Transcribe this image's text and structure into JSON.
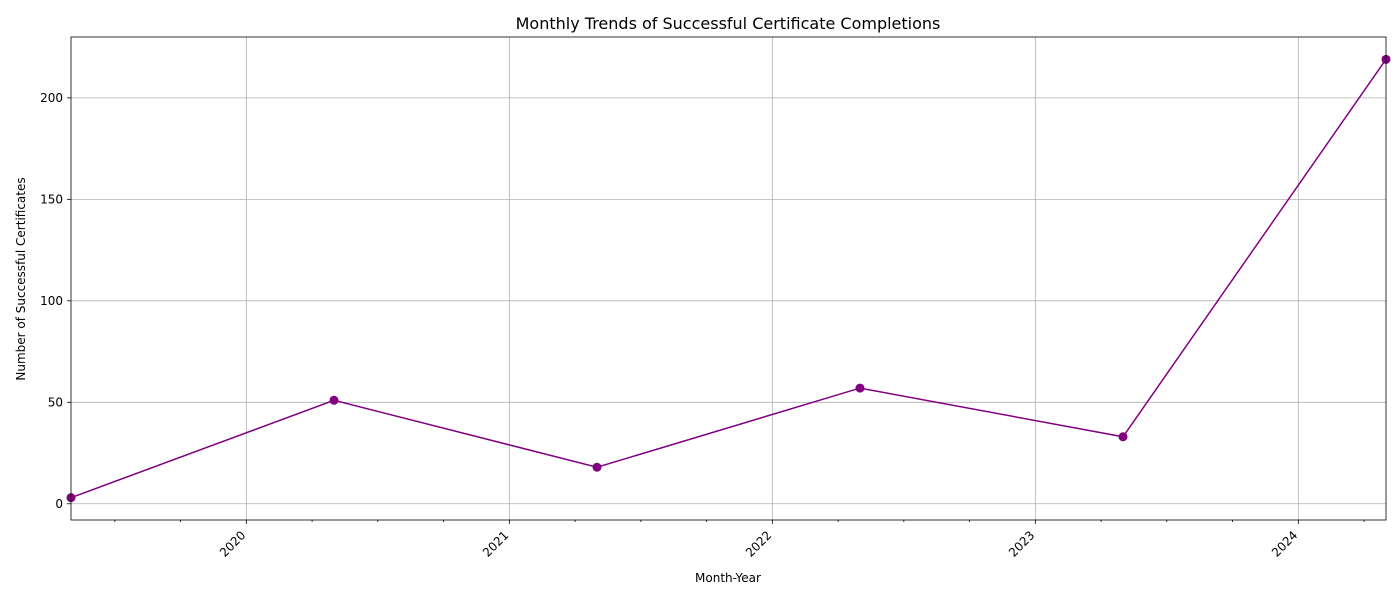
{
  "chart_data": {
    "type": "line",
    "title": "Monthly Trends of Successful Certificate Completions",
    "xlabel": "Month-Year",
    "ylabel": "Number of Successful Certificates",
    "x": [
      "2019-05",
      "2020-05",
      "2021-05",
      "2022-05",
      "2023-05",
      "2024-05"
    ],
    "series": [
      {
        "values": [
          3,
          51,
          18,
          57,
          33,
          219
        ],
        "color": "#800080",
        "marker": "circle"
      }
    ],
    "x_range": [
      "2019-05",
      "2024-05"
    ],
    "ylim": [
      -8,
      230
    ],
    "x_ticks": [
      "2020",
      "2021",
      "2022",
      "2023",
      "2024"
    ],
    "y_ticks": [
      0,
      50,
      100,
      150,
      200
    ],
    "grid": true
  }
}
